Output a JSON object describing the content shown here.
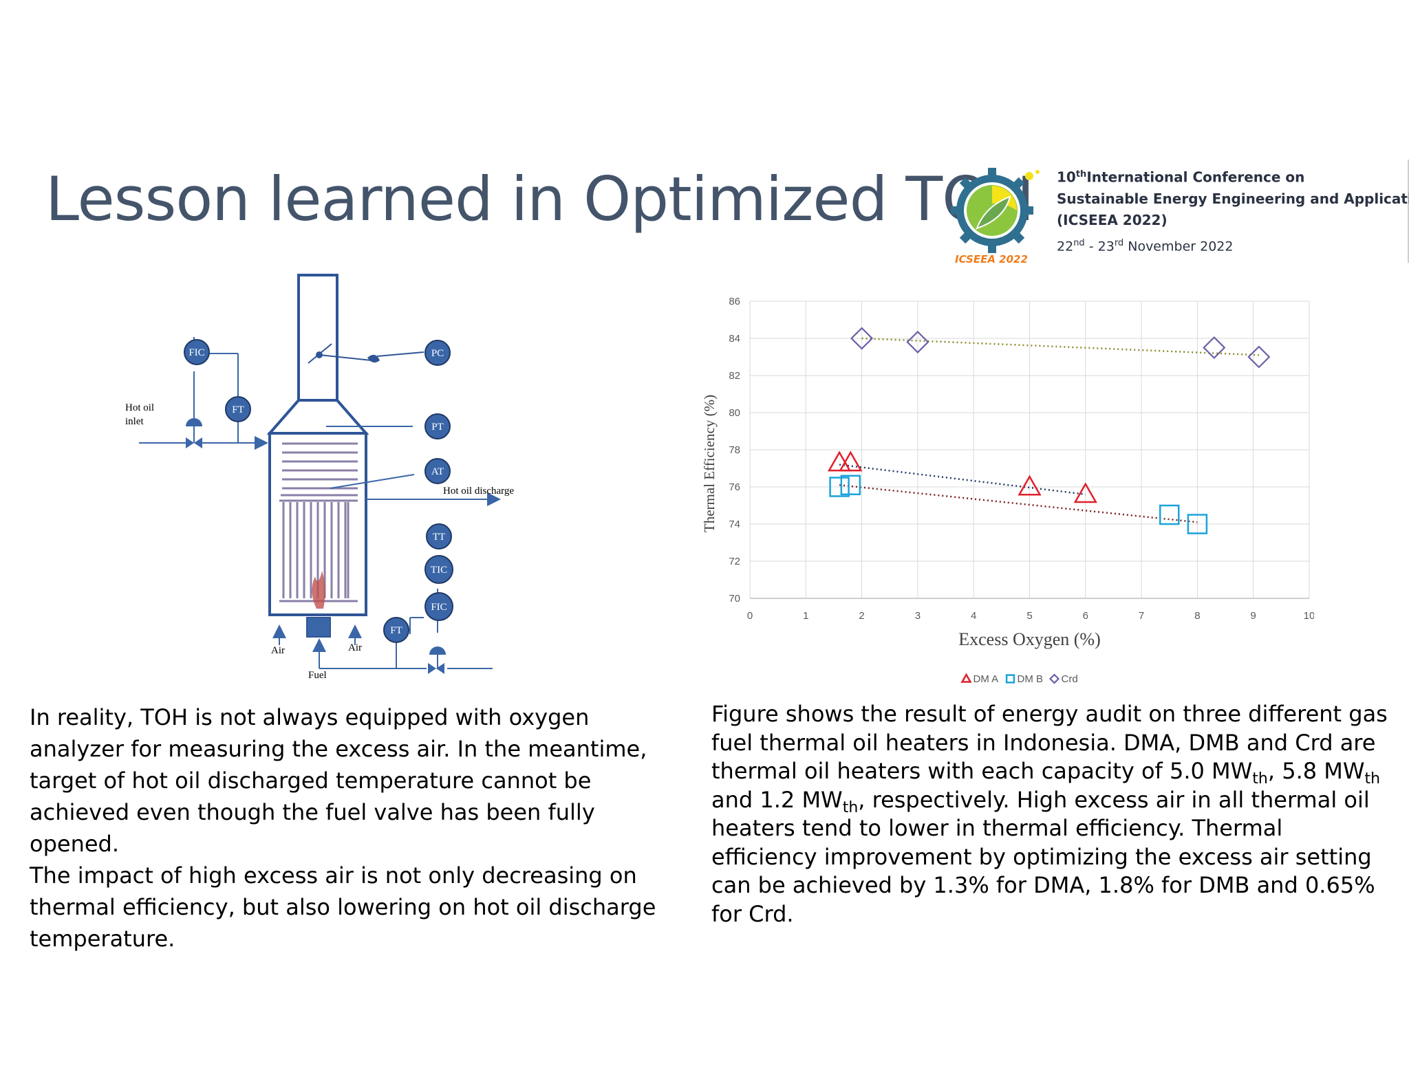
{
  "slide": {
    "title": "Lesson learned in Optimized TOH"
  },
  "conference": {
    "logo_text": "ICSEEA 2022",
    "edition_num": "10",
    "edition_sup": "th",
    "line1_rest": "International Conference on",
    "line2": "Sustainable Energy Engineering and Application",
    "line3": "(ICSEEA 2022)",
    "date_d1": "22",
    "date_s1": "nd",
    "date_sep": " - ",
    "date_d2": "23",
    "date_s2": "rd",
    "date_rest": " November 2022"
  },
  "diagram": {
    "labels": {
      "fic_top": "FIC",
      "ft_top": "FT",
      "pc": "PC",
      "pt": "PT",
      "at": "AT",
      "tt": "TT",
      "tic": "TIC",
      "fic_bottom": "FIC",
      "ft_bottom": "FT",
      "hot_oil_inlet_1": "Hot oil",
      "hot_oil_inlet_2": "inlet",
      "hot_oil_discharge": "Hot oil discharge",
      "air_left": "Air",
      "air_right": "Air",
      "fuel": "Fuel"
    }
  },
  "chart_data": {
    "type": "scatter",
    "title": "",
    "xlabel": "Excess Oxygen (%)",
    "ylabel": "Thermal Efficiency (%)",
    "xlim": [
      0,
      10
    ],
    "ylim": [
      70,
      86
    ],
    "xticks": [
      "0",
      "1",
      "2",
      "3",
      "4",
      "5",
      "6",
      "7",
      "8",
      "9",
      "10"
    ],
    "yticks": [
      "70",
      "72",
      "74",
      "76",
      "78",
      "80",
      "82",
      "84",
      "86"
    ],
    "legend_position": "bottom",
    "series": [
      {
        "name": "DM A",
        "marker": "triangle",
        "color": "#e0202a",
        "trend_color": "#1f3864",
        "x": [
          1.6,
          1.8,
          5.0,
          6.0
        ],
        "y": [
          77.3,
          77.3,
          76.0,
          75.6
        ]
      },
      {
        "name": "DM B",
        "marker": "square",
        "color": "#1aa3d9",
        "trend_color": "#7a1f1f",
        "x": [
          1.6,
          1.8,
          7.5,
          8.0
        ],
        "y": [
          76.0,
          76.1,
          74.5,
          74.0
        ]
      },
      {
        "name": "Crd",
        "marker": "diamond",
        "color": "#6b5ea8",
        "trend_color": "#8a8a2a",
        "x": [
          2.0,
          3.0,
          8.3,
          9.1
        ],
        "y": [
          84.0,
          83.8,
          83.5,
          83.0
        ]
      }
    ],
    "trendlines": [
      {
        "series": "DM A",
        "x": [
          1.6,
          6.0
        ],
        "y": [
          77.2,
          75.6
        ]
      },
      {
        "series": "DM B",
        "x": [
          1.6,
          8.0
        ],
        "y": [
          76.1,
          74.1
        ]
      },
      {
        "series": "Crd",
        "x": [
          2.0,
          9.1
        ],
        "y": [
          84.0,
          83.1
        ]
      }
    ]
  },
  "text": {
    "left_p1": "In reality, TOH is not always equipped with oxygen analyzer for measuring the excess air. In the meantime, target of hot oil discharged temperature cannot be achieved even though the fuel valve has been fully opened.",
    "left_p2": "The impact of high excess air is not only decreasing on thermal efficiency, but also lowering on hot oil discharge temperature.",
    "right_a": "Figure shows the result of energy audit on three different gas fuel thermal oil heaters in Indonesia. DMA, DMB and Crd are thermal oil heaters with each capacity of 5.0 MW",
    "right_sub1": "th",
    "right_b": ", 5.8 MW",
    "right_sub2": "th",
    "right_c": " and 1.2 MW",
    "right_sub3": "th",
    "right_d": ", respectively. High excess air in all thermal oil heaters tend to lower in thermal efficiency. Thermal efficiency improvement by optimizing the excess air setting can be achieved by 1.3% for DMA, 1.8% for DMB and 0.65% for Crd."
  },
  "colors": {
    "title": "#44546a",
    "instrument": "#3a66a8",
    "logo_orange": "#f07c1a"
  }
}
